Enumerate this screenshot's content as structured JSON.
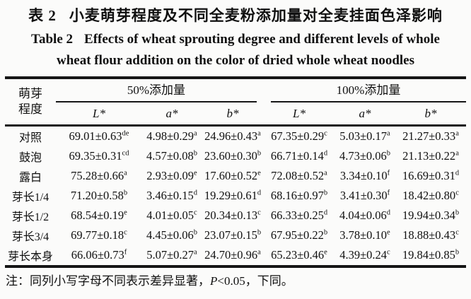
{
  "titles": {
    "zh_label": "表 2",
    "zh_text": "小麦萌芽程度及不同全麦粉添加量对全麦挂面色泽影响",
    "en_label": "Table 2",
    "en_line1": "Effects of wheat sprouting degree and different levels of whole",
    "en_line2": "wheat flour addition on the color of dried whole wheat noodles"
  },
  "table": {
    "row_header": {
      "line1": "萌芽",
      "line2": "程度"
    },
    "groups": [
      {
        "label": "50%添加量",
        "subcols": [
          "L*",
          "a*",
          "b*"
        ]
      },
      {
        "label": "100%添加量",
        "subcols": [
          "L*",
          "a*",
          "b*"
        ]
      }
    ],
    "rows": [
      {
        "label": "对照",
        "cells": [
          {
            "v": "69.01±0.63",
            "s": "de"
          },
          {
            "v": "4.98±0.29",
            "s": "a"
          },
          {
            "v": "24.96±0.43",
            "s": "a"
          },
          {
            "v": "67.35±0.29",
            "s": "c"
          },
          {
            "v": "5.03±0.17",
            "s": "a"
          },
          {
            "v": "21.27±0.33",
            "s": "a"
          }
        ]
      },
      {
        "label": "鼓泡",
        "cells": [
          {
            "v": "69.35±0.31",
            "s": "cd"
          },
          {
            "v": "4.57±0.08",
            "s": "b"
          },
          {
            "v": "23.60±0.30",
            "s": "b"
          },
          {
            "v": "66.71±0.14",
            "s": "d"
          },
          {
            "v": "4.73±0.06",
            "s": "b"
          },
          {
            "v": "21.13±0.22",
            "s": "a"
          }
        ]
      },
      {
        "label": "露白",
        "cells": [
          {
            "v": "75.28±0.66",
            "s": "a"
          },
          {
            "v": "2.93±0.09",
            "s": "e"
          },
          {
            "v": "17.60±0.52",
            "s": "e"
          },
          {
            "v": "72.08±0.52",
            "s": "a"
          },
          {
            "v": "3.34±0.10",
            "s": "f"
          },
          {
            "v": "16.69±0.31",
            "s": "d"
          }
        ]
      },
      {
        "label": "芽长1/4",
        "cells": [
          {
            "v": "71.20±0.58",
            "s": "b"
          },
          {
            "v": "3.46±0.15",
            "s": "d"
          },
          {
            "v": "19.29±0.61",
            "s": "d"
          },
          {
            "v": "68.16±0.97",
            "s": "b"
          },
          {
            "v": "3.41±0.30",
            "s": "f"
          },
          {
            "v": "18.42±0.80",
            "s": "c"
          }
        ]
      },
      {
        "label": "芽长1/2",
        "cells": [
          {
            "v": "68.54±0.19",
            "s": "e"
          },
          {
            "v": "4.01±0.05",
            "s": "c"
          },
          {
            "v": "20.34±0.13",
            "s": "c"
          },
          {
            "v": "66.33±0.25",
            "s": "d"
          },
          {
            "v": "4.04±0.06",
            "s": "d"
          },
          {
            "v": "19.94±0.34",
            "s": "b"
          }
        ]
      },
      {
        "label": "芽长3/4",
        "cells": [
          {
            "v": "69.77±0.18",
            "s": "c"
          },
          {
            "v": "4.45±0.06",
            "s": "b"
          },
          {
            "v": "23.07±0.15",
            "s": "b"
          },
          {
            "v": "67.95±0.22",
            "s": "b"
          },
          {
            "v": "3.78±0.10",
            "s": "e"
          },
          {
            "v": "18.88±0.43",
            "s": "c"
          }
        ]
      },
      {
        "label": "芽长本身",
        "cells": [
          {
            "v": "66.06±0.73",
            "s": "f"
          },
          {
            "v": "5.07±0.27",
            "s": "a"
          },
          {
            "v": "24.70±0.96",
            "s": "a"
          },
          {
            "v": "65.23±0.46",
            "s": "e"
          },
          {
            "v": "4.39±0.24",
            "s": "c"
          },
          {
            "v": "19.84±0.85",
            "s": "b"
          }
        ]
      }
    ]
  },
  "note": {
    "prefix": "注：同列小写字母不同表示差异显著，",
    "p_symbol": "P",
    "suffix": "<0.05，下同。"
  }
}
